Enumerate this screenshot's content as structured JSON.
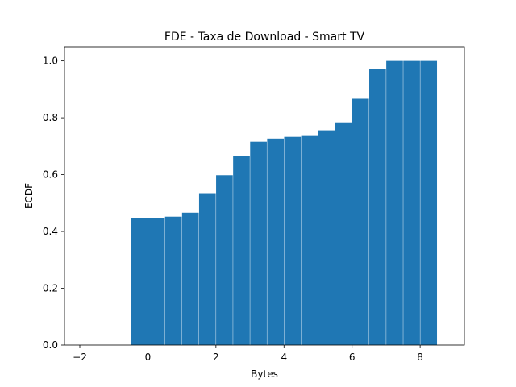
{
  "chart_data": {
    "type": "bar",
    "title": "FDE - Taxa de Download - Smart TV",
    "xlabel": "Bytes",
    "ylabel": "ECDF",
    "xlim": [
      -2.45,
      9.3
    ],
    "ylim": [
      0,
      1.05
    ],
    "xticks": [
      -2,
      0,
      2,
      4,
      6,
      8
    ],
    "xtick_labels": [
      "−2",
      "0",
      "2",
      "4",
      "6",
      "8"
    ],
    "yticks": [
      0.0,
      0.2,
      0.4,
      0.6,
      0.8,
      1.0
    ],
    "ytick_labels": [
      "0.0",
      "0.2",
      "0.4",
      "0.6",
      "0.8",
      "1.0"
    ],
    "bar_width": 0.49,
    "bar_color": "#1f77b4",
    "grid": false,
    "x": [
      -0.25,
      0.25,
      0.75,
      1.25,
      1.75,
      2.25,
      2.75,
      3.25,
      3.75,
      4.25,
      4.75,
      5.25,
      5.75,
      6.25,
      6.75,
      7.25,
      7.75,
      8.25
    ],
    "values": [
      0.446,
      0.446,
      0.452,
      0.466,
      0.532,
      0.598,
      0.665,
      0.716,
      0.727,
      0.733,
      0.736,
      0.756,
      0.784,
      0.867,
      0.972,
      1.0,
      1.0,
      1.0
    ]
  }
}
